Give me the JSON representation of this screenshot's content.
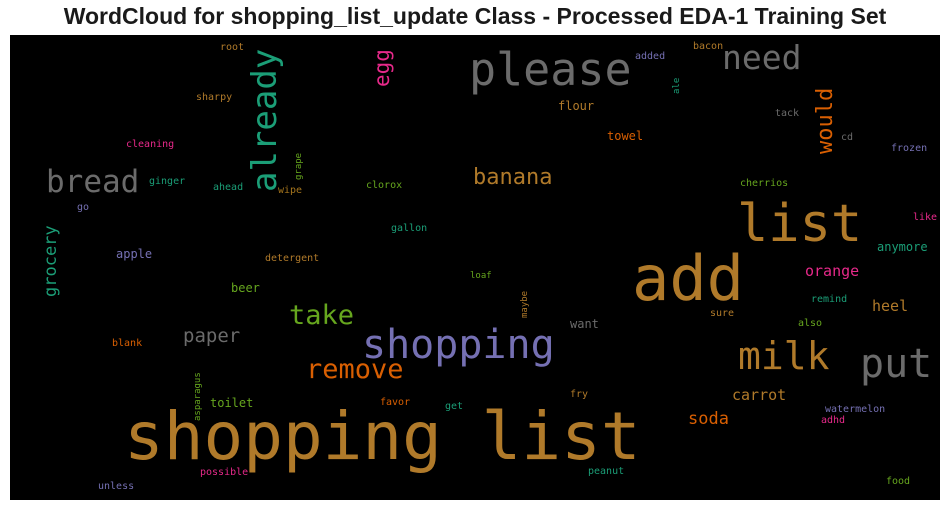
{
  "title": "WordCloud for shopping_list_update Class - Processed EDA-1 Training Set",
  "colors": {
    "orange": "#b07a2a",
    "gray": "#6b6b6b",
    "teal": "#1b9e77",
    "green": "#66a61e",
    "purple": "#7570b3",
    "magenta": "#e7298a",
    "rust": "#d95f02",
    "gold": "#a6761d"
  },
  "words": [
    {
      "text": "shopping list",
      "color": "orange"
    },
    {
      "text": "add",
      "color": "orange"
    },
    {
      "text": "please",
      "color": "gray"
    },
    {
      "text": "list",
      "color": "orange"
    },
    {
      "text": "shopping",
      "color": "purple"
    },
    {
      "text": "already",
      "color": "teal"
    },
    {
      "text": "milk",
      "color": "orange"
    },
    {
      "text": "put",
      "color": "gray"
    },
    {
      "text": "bread",
      "color": "gray"
    },
    {
      "text": "need",
      "color": "gray"
    },
    {
      "text": "take",
      "color": "green"
    },
    {
      "text": "remove",
      "color": "rust"
    },
    {
      "text": "banana",
      "color": "orange"
    },
    {
      "text": "would",
      "color": "rust"
    },
    {
      "text": "egg",
      "color": "magenta"
    },
    {
      "text": "grocery",
      "color": "teal"
    },
    {
      "text": "paper",
      "color": "gray"
    },
    {
      "text": "orange",
      "color": "magenta"
    },
    {
      "text": "soda",
      "color": "rust"
    },
    {
      "text": "carrot",
      "color": "orange"
    },
    {
      "text": "heel",
      "color": "orange"
    },
    {
      "text": "apple",
      "color": "purple"
    },
    {
      "text": "towel",
      "color": "rust"
    },
    {
      "text": "flour",
      "color": "orange"
    },
    {
      "text": "beer",
      "color": "green"
    },
    {
      "text": "toilet",
      "color": "green"
    },
    {
      "text": "want",
      "color": "gray"
    },
    {
      "text": "anymore",
      "color": "teal"
    },
    {
      "text": "frozen",
      "color": "purple"
    },
    {
      "text": "root",
      "color": "orange"
    },
    {
      "text": "added",
      "color": "purple"
    },
    {
      "text": "bacon",
      "color": "orange"
    },
    {
      "text": "ale",
      "color": "teal"
    },
    {
      "text": "sharpy",
      "color": "orange"
    },
    {
      "text": "tack",
      "color": "gray"
    },
    {
      "text": "cd",
      "color": "gray"
    },
    {
      "text": "cleaning",
      "color": "magenta"
    },
    {
      "text": "grape",
      "color": "green"
    },
    {
      "text": "ginger",
      "color": "teal"
    },
    {
      "text": "ahead",
      "color": "teal"
    },
    {
      "text": "wipe",
      "color": "gold"
    },
    {
      "text": "clorox",
      "color": "green"
    },
    {
      "text": "cherrios",
      "color": "green"
    },
    {
      "text": "go",
      "color": "purple"
    },
    {
      "text": "like",
      "color": "magenta"
    },
    {
      "text": "gallon",
      "color": "teal"
    },
    {
      "text": "detergent",
      "color": "orange"
    },
    {
      "text": "loaf",
      "color": "green"
    },
    {
      "text": "maybe",
      "color": "orange"
    },
    {
      "text": "remind",
      "color": "teal"
    },
    {
      "text": "sure",
      "color": "orange"
    },
    {
      "text": "also",
      "color": "green"
    },
    {
      "text": "blank",
      "color": "rust"
    },
    {
      "text": "asparagus",
      "color": "green"
    },
    {
      "text": "fry",
      "color": "orange"
    },
    {
      "text": "favor",
      "color": "rust"
    },
    {
      "text": "get",
      "color": "teal"
    },
    {
      "text": "watermelon",
      "color": "purple"
    },
    {
      "text": "adhd",
      "color": "magenta"
    },
    {
      "text": "possible",
      "color": "magenta"
    },
    {
      "text": "peanut",
      "color": "teal"
    },
    {
      "text": "unless",
      "color": "purple"
    },
    {
      "text": "food",
      "color": "green"
    }
  ]
}
